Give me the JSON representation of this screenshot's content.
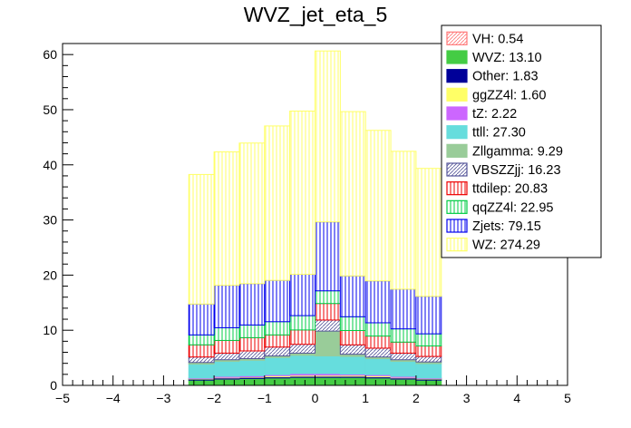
{
  "chart_data": {
    "type": "bar",
    "stacked": true,
    "title": "WVZ_jet_eta_5",
    "xlabel": "",
    "ylabel": "",
    "xlim": [
      -5,
      5
    ],
    "ylim": [
      0,
      62
    ],
    "x_ticks": [
      -5,
      -4,
      -3,
      -2,
      -1,
      0,
      1,
      2,
      3,
      4,
      5
    ],
    "y_ticks": [
      0,
      10,
      20,
      30,
      40,
      50,
      60
    ],
    "bin_edges": [
      -2.5,
      -2.0,
      -1.5,
      -1.0,
      -0.5,
      0.0,
      0.5,
      1.0,
      1.5,
      2.0,
      2.5
    ],
    "legend_position": "top-right",
    "series": [
      {
        "name": "WZ: 274.29",
        "color": "#ffff66",
        "pattern": "vertical",
        "values": [
          23.5,
          24.2,
          25.5,
          28.0,
          29.6,
          31.0,
          29.8,
          27.3,
          25.0,
          23.2
        ]
      },
      {
        "name": "Zjets: 79.15",
        "color": "#0000ee",
        "pattern": "vertical",
        "values": [
          5.6,
          7.7,
          7.5,
          7.5,
          7.5,
          12.5,
          7.4,
          7.6,
          7.2,
          6.8
        ]
      },
      {
        "name": "qqZZ4l: 22.95",
        "color": "#00cc44",
        "pattern": "vertical",
        "values": [
          1.8,
          2.3,
          2.3,
          2.4,
          2.6,
          2.3,
          2.5,
          2.4,
          2.4,
          2.2
        ]
      },
      {
        "name": "ttdilep: 20.83",
        "color": "#ee0000",
        "pattern": "vertical",
        "values": [
          2.2,
          2.3,
          2.4,
          2.2,
          2.6,
          3.0,
          2.6,
          2.2,
          2.0,
          1.9
        ]
      },
      {
        "name": "VBSZZjj: 16.23",
        "color": "#555599",
        "pattern": "diag",
        "values": [
          1.0,
          1.2,
          1.4,
          1.6,
          1.6,
          2.0,
          1.7,
          1.6,
          1.2,
          1.0
        ]
      },
      {
        "name": "Zllgamma: 9.29",
        "color": "#99cc99",
        "pattern": "solid",
        "values": [
          0.3,
          0.3,
          0.3,
          0.3,
          0.4,
          4.5,
          0.4,
          0.3,
          0.3,
          0.3
        ]
      },
      {
        "name": "ttll: 27.30",
        "color": "#66dddd",
        "pattern": "solid",
        "values": [
          2.5,
          2.7,
          2.8,
          3.1,
          3.3,
          3.2,
          3.2,
          2.9,
          2.7,
          2.6
        ]
      },
      {
        "name": "tZ: 2.22",
        "color": "#cc66ff",
        "pattern": "solid",
        "values": [
          0.1,
          0.2,
          0.2,
          0.2,
          0.3,
          0.3,
          0.2,
          0.2,
          0.2,
          0.1
        ]
      },
      {
        "name": "ggZZ4l: 1.60",
        "color": "#ffff66",
        "pattern": "solid",
        "values": [
          0.1,
          0.1,
          0.1,
          0.2,
          0.2,
          0.2,
          0.2,
          0.2,
          0.1,
          0.1
        ]
      },
      {
        "name": "Other: 1.83",
        "color": "#000099",
        "pattern": "solid",
        "values": [
          0.2,
          0.2,
          0.2,
          0.2,
          0.2,
          0.2,
          0.2,
          0.2,
          0.2,
          0.2
        ]
      },
      {
        "name": "WVZ: 13.10",
        "color": "#44cc44",
        "pattern": "solid",
        "values": [
          0.9,
          1.1,
          1.2,
          1.3,
          1.4,
          1.4,
          1.4,
          1.3,
          1.1,
          0.9
        ]
      },
      {
        "name": "VH: 0.54",
        "color": "#ff7777",
        "pattern": "diag",
        "values": [
          0.05,
          0.05,
          0.05,
          0.05,
          0.05,
          0.05,
          0.05,
          0.05,
          0.05,
          0.05
        ]
      }
    ]
  }
}
